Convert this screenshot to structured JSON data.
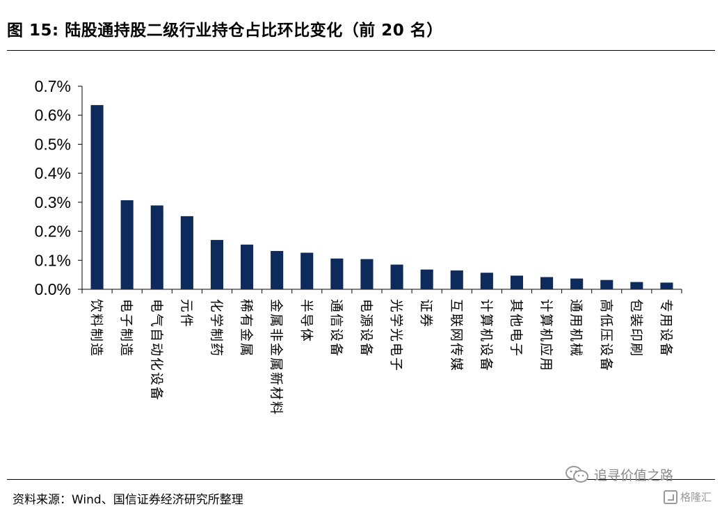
{
  "header": {
    "title": "图 15:  陆股通持股二级行业持仓占比环比变化（前 20 名）"
  },
  "footer": {
    "source": "资料来源：Wind、国信证券经济研究所整理",
    "watermark_text": "追寻价值之路",
    "logo_text": "格隆汇"
  },
  "chart_data": {
    "type": "bar",
    "title": "",
    "xlabel": "",
    "ylabel": "",
    "ylim": [
      0,
      0.7
    ],
    "yticks": [
      "0.0%",
      "0.1%",
      "0.2%",
      "0.3%",
      "0.4%",
      "0.5%",
      "0.6%",
      "0.7%"
    ],
    "grid": false,
    "bar_color": "#0d2a5c",
    "categories": [
      "饮料制造",
      "电子制造",
      "电气自动化设备",
      "元件",
      "化学制药",
      "稀有金属",
      "金属非金属新材料",
      "半导体",
      "通信设备",
      "电源设备",
      "光学光电子",
      "证券",
      "互联网传媒",
      "计算机设备",
      "其他电子",
      "计算机应用",
      "通用机械",
      "高低压设备",
      "包装印刷",
      "专用设备"
    ],
    "values": [
      0.635,
      0.307,
      0.289,
      0.252,
      0.17,
      0.154,
      0.132,
      0.126,
      0.106,
      0.104,
      0.085,
      0.068,
      0.065,
      0.057,
      0.047,
      0.042,
      0.037,
      0.032,
      0.025,
      0.023
    ]
  }
}
